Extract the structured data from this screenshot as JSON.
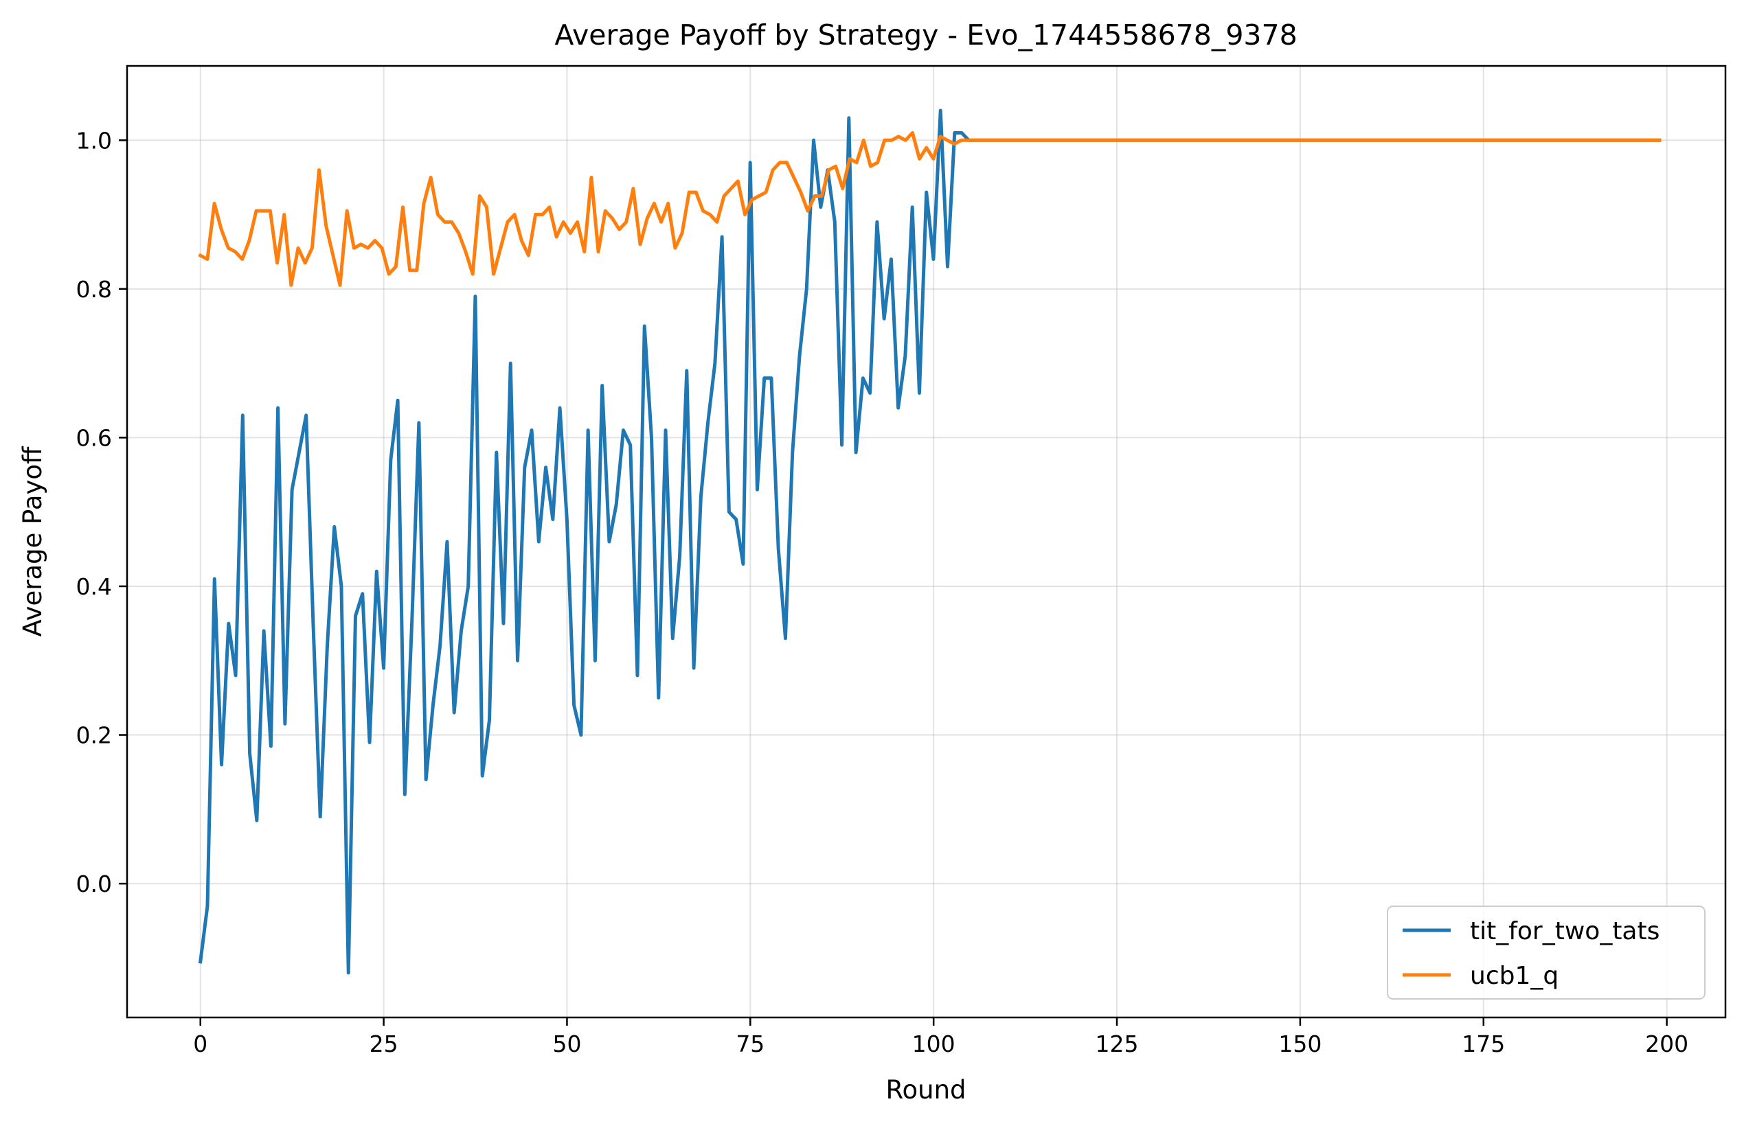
{
  "chart_data": {
    "type": "line",
    "title": "Average Payoff by Strategy - Evo_1744558678_9378",
    "xlabel": "Round",
    "ylabel": "Average Payoff",
    "xlim": [
      -10,
      208
    ],
    "ylim": [
      -0.18,
      1.1
    ],
    "xticks": [
      "0",
      "25",
      "50",
      "75",
      "100",
      "125",
      "150",
      "175",
      "200"
    ],
    "yticks": [
      "0.0",
      "0.2",
      "0.4",
      "0.6",
      "0.8",
      "1.0"
    ],
    "grid": true,
    "legend_position": "lower right",
    "series": [
      {
        "name": "tit_for_two_tats",
        "color": "#1f77b4",
        "x_start": 0,
        "x_end": 199,
        "values": [
          -0.105,
          -0.03,
          0.41,
          0.16,
          0.35,
          0.28,
          0.63,
          0.175,
          0.085,
          0.34,
          0.185,
          0.64,
          0.215,
          0.53,
          0.58,
          0.63,
          0.35,
          0.09,
          0.32,
          0.48,
          0.4,
          -0.12,
          0.36,
          0.39,
          0.19,
          0.42,
          0.29,
          0.57,
          0.65,
          0.12,
          0.35,
          0.62,
          0.14,
          0.24,
          0.32,
          0.46,
          0.23,
          0.34,
          0.4,
          0.79,
          0.145,
          0.22,
          0.58,
          0.35,
          0.7,
          0.3,
          0.56,
          0.61,
          0.46,
          0.56,
          0.49,
          0.64,
          0.49,
          0.24,
          0.2,
          0.61,
          0.3,
          0.67,
          0.46,
          0.51,
          0.61,
          0.59,
          0.28,
          0.75,
          0.6,
          0.25,
          0.61,
          0.33,
          0.44,
          0.69,
          0.29,
          0.52,
          0.62,
          0.7,
          0.87,
          0.5,
          0.49,
          0.43,
          0.97,
          0.53,
          0.68,
          0.68,
          0.45,
          0.33,
          0.58,
          0.71,
          0.8,
          1.0,
          0.91,
          0.96,
          0.89,
          0.59,
          1.03,
          0.58,
          0.68,
          0.66,
          0.89,
          0.76,
          0.84,
          0.64,
          0.71,
          0.91,
          0.66,
          0.93,
          0.84,
          1.04,
          0.83,
          1.01,
          1.01,
          1.0,
          1.0,
          1.0,
          1.0,
          1.0,
          1.0,
          1.0,
          1.0,
          1.0,
          1.0,
          1.0,
          1.0,
          1.0,
          1.0,
          1.0,
          1.0,
          1.0,
          1.0,
          1.0,
          1.0,
          1.0,
          1.0,
          1.0,
          1.0,
          1.0,
          1.0,
          1.0,
          1.0,
          1.0,
          1.0,
          1.0,
          1.0,
          1.0,
          1.0,
          1.0,
          1.0,
          1.0,
          1.0,
          1.0,
          1.0,
          1.0,
          1.0,
          1.0,
          1.0,
          1.0,
          1.0,
          1.0,
          1.0,
          1.0,
          1.0,
          1.0,
          1.0,
          1.0,
          1.0,
          1.0,
          1.0,
          1.0,
          1.0,
          1.0,
          1.0,
          1.0,
          1.0,
          1.0,
          1.0,
          1.0,
          1.0,
          1.0,
          1.0,
          1.0,
          1.0,
          1.0,
          1.0,
          1.0,
          1.0,
          1.0,
          1.0,
          1.0,
          1.0,
          1.0,
          1.0,
          1.0,
          1.0,
          1.0,
          1.0,
          1.0,
          1.0,
          1.0,
          1.0,
          1.0,
          1.0,
          1.0,
          1.0,
          1.0,
          1.0,
          1.0,
          1.0,
          1.0,
          1.0,
          1.0
        ]
      },
      {
        "name": "ucb1_q",
        "color": "#ff7f0e",
        "x_start": 0,
        "x_end": 199,
        "values": [
          0.845,
          0.84,
          0.915,
          0.88,
          0.855,
          0.85,
          0.84,
          0.865,
          0.905,
          0.905,
          0.905,
          0.835,
          0.9,
          0.805,
          0.855,
          0.835,
          0.855,
          0.96,
          0.885,
          0.845,
          0.805,
          0.905,
          0.855,
          0.86,
          0.855,
          0.865,
          0.855,
          0.82,
          0.83,
          0.91,
          0.825,
          0.825,
          0.915,
          0.95,
          0.9,
          0.89,
          0.89,
          0.875,
          0.85,
          0.82,
          0.925,
          0.91,
          0.82,
          0.855,
          0.89,
          0.9,
          0.865,
          0.845,
          0.9,
          0.9,
          0.91,
          0.87,
          0.89,
          0.875,
          0.89,
          0.85,
          0.95,
          0.85,
          0.905,
          0.895,
          0.88,
          0.89,
          0.935,
          0.86,
          0.895,
          0.915,
          0.89,
          0.915,
          0.855,
          0.875,
          0.93,
          0.93,
          0.905,
          0.9,
          0.89,
          0.925,
          0.935,
          0.945,
          0.9,
          0.92,
          0.925,
          0.93,
          0.96,
          0.97,
          0.97,
          0.95,
          0.93,
          0.905,
          0.925,
          0.925,
          0.96,
          0.965,
          0.935,
          0.975,
          0.97,
          1.0,
          0.965,
          0.97,
          1.0,
          1.0,
          1.005,
          1.0,
          1.01,
          0.975,
          0.99,
          0.975,
          1.005,
          1.0,
          0.995,
          1.0,
          1.0,
          1.0,
          1.0,
          1.0,
          1.0,
          1.0,
          1.0,
          1.0,
          1.0,
          1.0,
          1.0,
          1.0,
          1.0,
          1.0,
          1.0,
          1.0,
          1.0,
          1.0,
          1.0,
          1.0,
          1.0,
          1.0,
          1.0,
          1.0,
          1.0,
          1.0,
          1.0,
          1.0,
          1.0,
          1.0,
          1.0,
          1.0,
          1.0,
          1.0,
          1.0,
          1.0,
          1.0,
          1.0,
          1.0,
          1.0,
          1.0,
          1.0,
          1.0,
          1.0,
          1.0,
          1.0,
          1.0,
          1.0,
          1.0,
          1.0,
          1.0,
          1.0,
          1.0,
          1.0,
          1.0,
          1.0,
          1.0,
          1.0,
          1.0,
          1.0,
          1.0,
          1.0,
          1.0,
          1.0,
          1.0,
          1.0,
          1.0,
          1.0,
          1.0,
          1.0,
          1.0,
          1.0,
          1.0,
          1.0,
          1.0,
          1.0,
          1.0,
          1.0,
          1.0,
          1.0,
          1.0,
          1.0,
          1.0,
          1.0,
          1.0,
          1.0,
          1.0,
          1.0,
          1.0,
          1.0,
          1.0,
          1.0,
          1.0,
          1.0,
          1.0,
          1.0,
          1.0,
          1.0,
          1.0,
          1.0
        ]
      }
    ]
  }
}
